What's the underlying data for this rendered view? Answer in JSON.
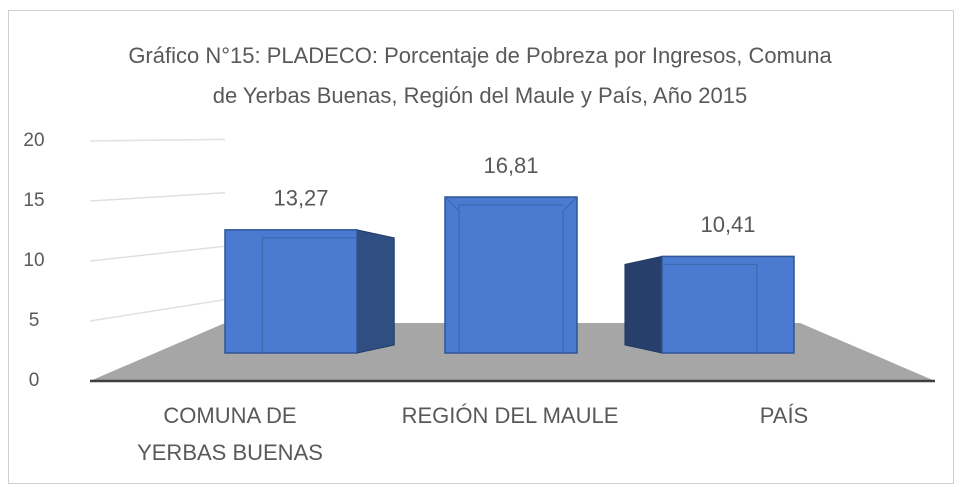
{
  "chart_data": {
    "type": "bar3d",
    "title": "Gráfico N°15: PLADECO: Porcentaje de Pobreza por Ingresos, Comuna de Yerbas Buenas, Región del Maule y País, Año 2015",
    "categories": [
      "COMUNA DE YERBAS BUENAS",
      "REGIÓN DEL MAULE",
      "PAÍS"
    ],
    "values": [
      13.27,
      16.81,
      10.41
    ],
    "value_labels": [
      "13,27",
      "16,81",
      "10,41"
    ],
    "color": "#4a7bd0",
    "ylim": [
      0,
      20
    ],
    "yticks": [
      0,
      5,
      10,
      15,
      20
    ],
    "grid": true
  }
}
